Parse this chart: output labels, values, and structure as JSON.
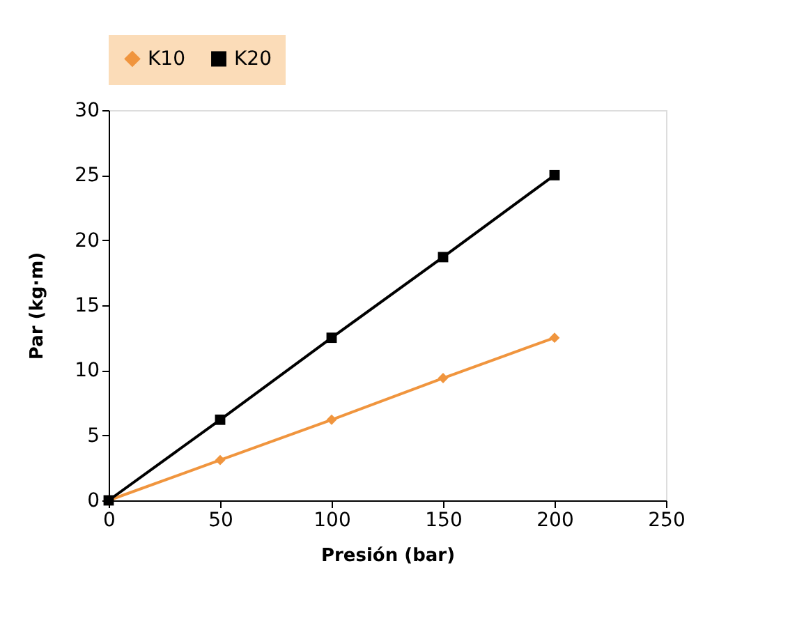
{
  "chart_data": {
    "type": "line",
    "xlabel": "Presión (bar)",
    "ylabel": "Par (kg·m)",
    "x": [
      0,
      50,
      100,
      150,
      200
    ],
    "series": [
      {
        "name": "K10",
        "color": "#f0953e",
        "marker": "diamond",
        "values": [
          0,
          3.1,
          6.2,
          9.4,
          12.5
        ]
      },
      {
        "name": "K20",
        "color": "#000000",
        "marker": "square",
        "values": [
          0,
          6.2,
          12.5,
          18.7,
          25
        ]
      }
    ],
    "xlim": [
      0,
      250
    ],
    "xticks": [
      0,
      50,
      100,
      150,
      200,
      250
    ],
    "ylim": [
      0,
      30
    ],
    "yticks": [
      0,
      5,
      10,
      15,
      20,
      25,
      30
    ],
    "grid": false,
    "legend": "top",
    "line_style": "solid"
  }
}
